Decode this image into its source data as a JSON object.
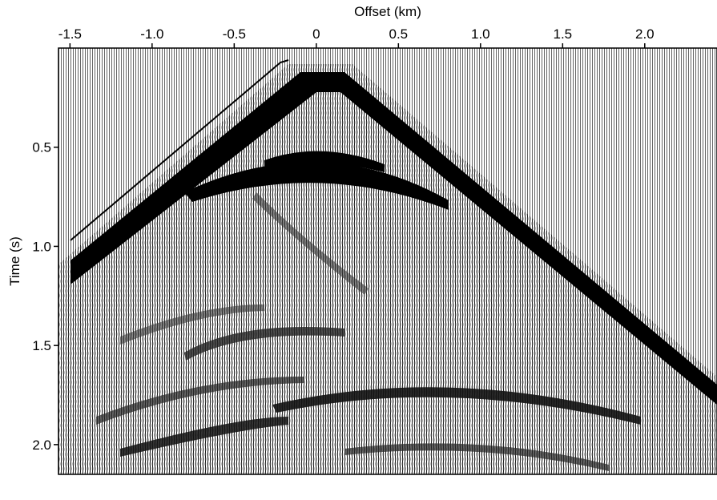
{
  "chart_data": {
    "type": "wiggle",
    "xlabel": "Offset (km)",
    "ylabel": "Time (s)",
    "xlim": [
      -1.57,
      2.44
    ],
    "ylim": [
      2.15,
      0
    ],
    "xticks": [
      -1.5,
      {
        "value": -1,
        "label": "-1.0"
      },
      -0.5,
      0,
      0.5,
      {
        "value": 1,
        "label": "1.0"
      },
      1.5,
      {
        "value": 2,
        "label": "2.0"
      }
    ],
    "yticks": [
      0.5,
      {
        "value": 1,
        "label": "1.0"
      },
      1.5,
      {
        "value": 2,
        "label": "2.0"
      }
    ]
  }
}
